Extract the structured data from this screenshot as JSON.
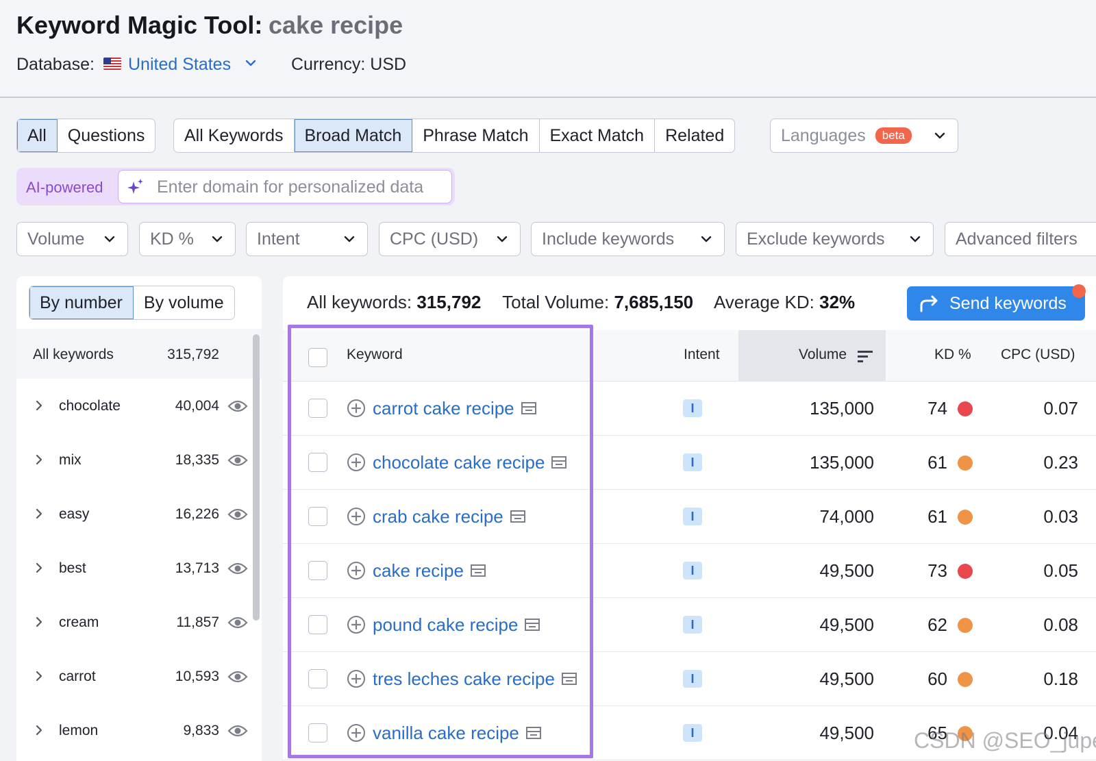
{
  "header": {
    "title": "Keyword Magic Tool:",
    "query": "cake recipe",
    "database_label": "Database:",
    "database_value": "United States",
    "currency": "Currency: USD"
  },
  "tabs_group1": [
    "All",
    "Questions"
  ],
  "tabs_group2": [
    "All Keywords",
    "Broad Match",
    "Phrase Match",
    "Exact Match",
    "Related"
  ],
  "languages": {
    "label": "Languages",
    "badge": "beta"
  },
  "ai": {
    "label": "AI-powered",
    "placeholder": "Enter domain for personalized data"
  },
  "filters": [
    "Volume",
    "KD %",
    "Intent",
    "CPC (USD)",
    "Include keywords",
    "Exclude keywords",
    "Advanced filters"
  ],
  "sidebar": {
    "by_number": "By number",
    "by_volume": "By volume",
    "all_label": "All keywords",
    "all_count": "315,792",
    "items": [
      {
        "name": "chocolate",
        "count": "40,004"
      },
      {
        "name": "mix",
        "count": "18,335"
      },
      {
        "name": "easy",
        "count": "16,226"
      },
      {
        "name": "best",
        "count": "13,713"
      },
      {
        "name": "cream",
        "count": "11,857"
      },
      {
        "name": "carrot",
        "count": "10,593"
      },
      {
        "name": "lemon",
        "count": "9,833"
      }
    ]
  },
  "stats": {
    "all_label": "All keywords:",
    "all_value": "315,792",
    "vol_label": "Total Volume:",
    "vol_value": "7,685,150",
    "kd_label": "Average KD:",
    "kd_value": "32%"
  },
  "send_button": "Send keywords",
  "table": {
    "headers": {
      "keyword": "Keyword",
      "intent": "Intent",
      "volume": "Volume",
      "kd": "KD %",
      "cpc": "CPC (USD)"
    },
    "rows": [
      {
        "keyword": "carrot cake recipe",
        "intent": "I",
        "volume": "135,000",
        "kd": "74",
        "kd_color": "#e8474e",
        "cpc": "0.07"
      },
      {
        "keyword": "chocolate cake recipe",
        "intent": "I",
        "volume": "135,000",
        "kd": "61",
        "kd_color": "#ef9447",
        "cpc": "0.23"
      },
      {
        "keyword": "crab cake recipe",
        "intent": "I",
        "volume": "74,000",
        "kd": "61",
        "kd_color": "#ef9447",
        "cpc": "0.03"
      },
      {
        "keyword": "cake recipe",
        "intent": "I",
        "volume": "49,500",
        "kd": "73",
        "kd_color": "#e8474e",
        "cpc": "0.05"
      },
      {
        "keyword": "pound cake recipe",
        "intent": "I",
        "volume": "49,500",
        "kd": "62",
        "kd_color": "#ef9447",
        "cpc": "0.08"
      },
      {
        "keyword": "tres leches cake recipe",
        "intent": "I",
        "volume": "49,500",
        "kd": "60",
        "kd_color": "#ef9447",
        "cpc": "0.18"
      },
      {
        "keyword": "vanilla cake recipe",
        "intent": "I",
        "volume": "49,500",
        "kd": "65",
        "kd_color": "#ef9447",
        "cpc": "0.04"
      }
    ]
  },
  "watermark": "CSDN @SEO_juper"
}
